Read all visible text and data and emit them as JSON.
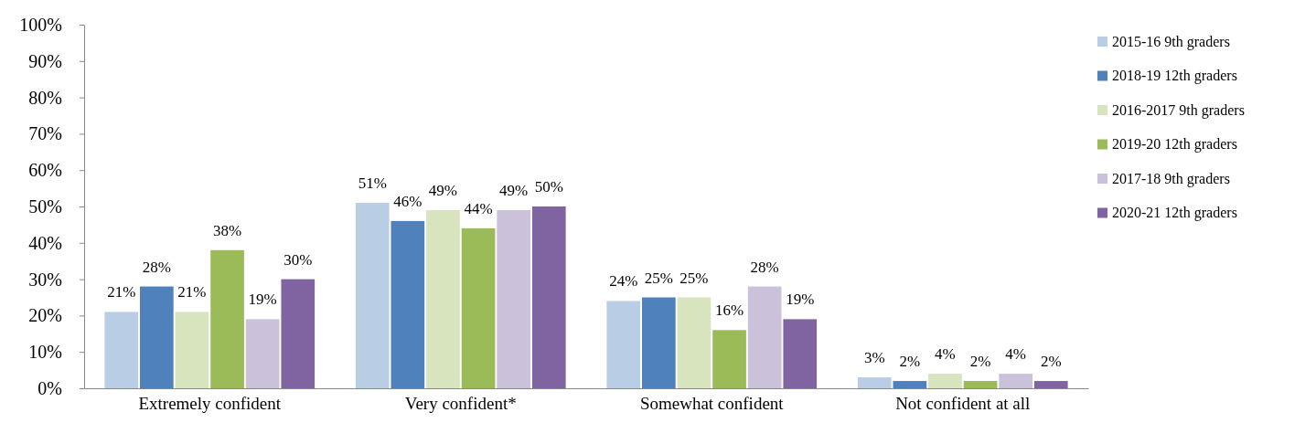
{
  "chart_data": {
    "type": "bar",
    "categories": [
      "Extremely confident",
      "Very confident*",
      "Somewhat confident",
      "Not confident at all"
    ],
    "series": [
      {
        "name": "2015-16 9th graders",
        "color": "#b9cde5",
        "values": [
          21,
          51,
          24,
          3
        ]
      },
      {
        "name": "2018-19 12th graders",
        "color": "#4f81bd",
        "values": [
          28,
          46,
          25,
          2
        ]
      },
      {
        "name": "2016-2017 9th graders",
        "color": "#d7e4bd",
        "values": [
          21,
          49,
          25,
          4
        ]
      },
      {
        "name": "2019-20 12th graders",
        "color": "#9bbb59",
        "values": [
          38,
          44,
          16,
          2
        ]
      },
      {
        "name": "2017-18 9th graders",
        "color": "#ccc1da",
        "values": [
          19,
          49,
          28,
          4
        ]
      },
      {
        "name": "2020-21 12th graders",
        "color": "#8064a2",
        "values": [
          30,
          50,
          19,
          2
        ]
      }
    ],
    "ylim": [
      0,
      100
    ],
    "yticks": [
      {
        "value": 0,
        "label": "0%"
      },
      {
        "value": 10,
        "label": "10%"
      },
      {
        "value": 20,
        "label": "20%"
      },
      {
        "value": 30,
        "label": "30%"
      },
      {
        "value": 40,
        "label": "40%"
      },
      {
        "value": 50,
        "label": "50%"
      },
      {
        "value": 60,
        "label": "60%"
      },
      {
        "value": 70,
        "label": "70%"
      },
      {
        "value": 80,
        "label": "80%"
      },
      {
        "value": 90,
        "label": "90%"
      },
      {
        "value": 100,
        "label": "100%"
      }
    ],
    "value_labels": [
      [
        "21%",
        "51%",
        "24%",
        "3%"
      ],
      [
        "28%",
        "46%",
        "25%",
        "2%"
      ],
      [
        "21%",
        "49%",
        "25%",
        "4%"
      ],
      [
        "38%",
        "44%",
        "16%",
        "2%"
      ],
      [
        "19%",
        "49%",
        "28%",
        "4%"
      ],
      [
        "30%",
        "50%",
        "19%",
        "2%"
      ]
    ],
    "legend": "right",
    "grid": false
  }
}
